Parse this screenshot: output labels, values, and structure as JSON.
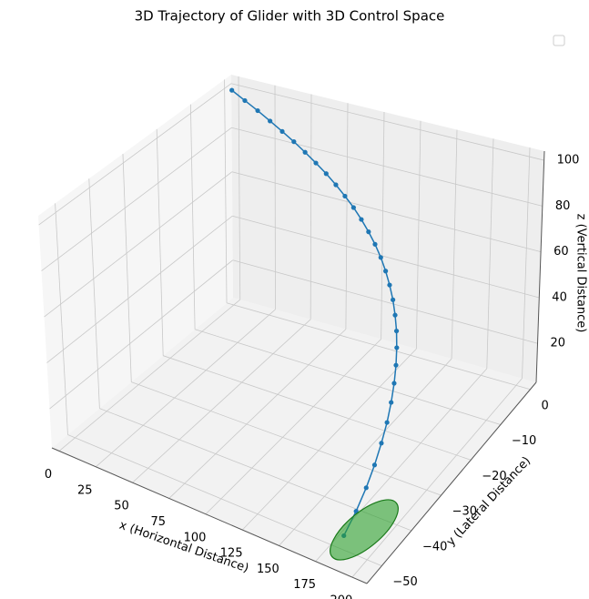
{
  "chart_data": {
    "type": "line3d",
    "title": "3D Trajectory of Glider with 3D Control Space",
    "x_label": "x (Horizontal Distance)",
    "y_label": "y (Lateral Distance)",
    "z_label": "z (Vertical Distance)",
    "series": [
      {
        "color": "#1f77b4",
        "x": [
          0,
          8.9,
          17.7,
          26.3,
          34.8,
          43.1,
          51.2,
          59.2,
          67.0,
          74.6,
          82.0,
          89.3,
          96.3,
          103.2,
          109.9,
          116.4,
          122.6,
          128.6,
          134.5,
          140.0,
          145.4,
          150.4,
          155.2,
          159.7,
          163.9,
          167.8,
          171.2,
          174.3,
          176.9,
          178.9,
          180
        ],
        "y": [
          0,
          0,
          0,
          -0.05,
          -0.11,
          -0.22,
          -0.38,
          -0.61,
          -0.91,
          -1.3,
          -1.78,
          -2.37,
          -3.07,
          -3.91,
          -4.88,
          -6.0,
          -7.28,
          -8.74,
          -10.37,
          -12.19,
          -14.22,
          -16.46,
          -18.93,
          -21.63,
          -24.58,
          -27.78,
          -31.25,
          -34.99,
          -39.02,
          -43.36,
          -48
        ],
        "z": [
          100,
          96.8,
          93.7,
          90.5,
          87.3,
          84.2,
          81,
          77.8,
          74.7,
          71.5,
          68.3,
          65.2,
          62,
          58.8,
          55.7,
          52.5,
          49.3,
          46.2,
          43,
          39.8,
          36.7,
          33.5,
          30.3,
          27.2,
          24,
          20.8,
          17.7,
          14.5,
          11.3,
          8.2,
          5
        ]
      }
    ],
    "xlim": [
      -5,
      210
    ],
    "ylim": [
      -55,
      2
    ],
    "zlim": [
      3,
      104
    ],
    "xticks": [
      0,
      25,
      50,
      75,
      100,
      125,
      150,
      175,
      200
    ],
    "yticks": [
      0,
      {
        "value": -10,
        "label": "−10"
      },
      {
        "value": -20,
        "label": "−20"
      },
      {
        "value": -30,
        "label": "−30"
      },
      {
        "value": -40,
        "label": "−40"
      },
      {
        "value": -50,
        "label": "−50"
      }
    ],
    "zticks": [
      20,
      40,
      60,
      80,
      100
    ],
    "grid": true
  }
}
